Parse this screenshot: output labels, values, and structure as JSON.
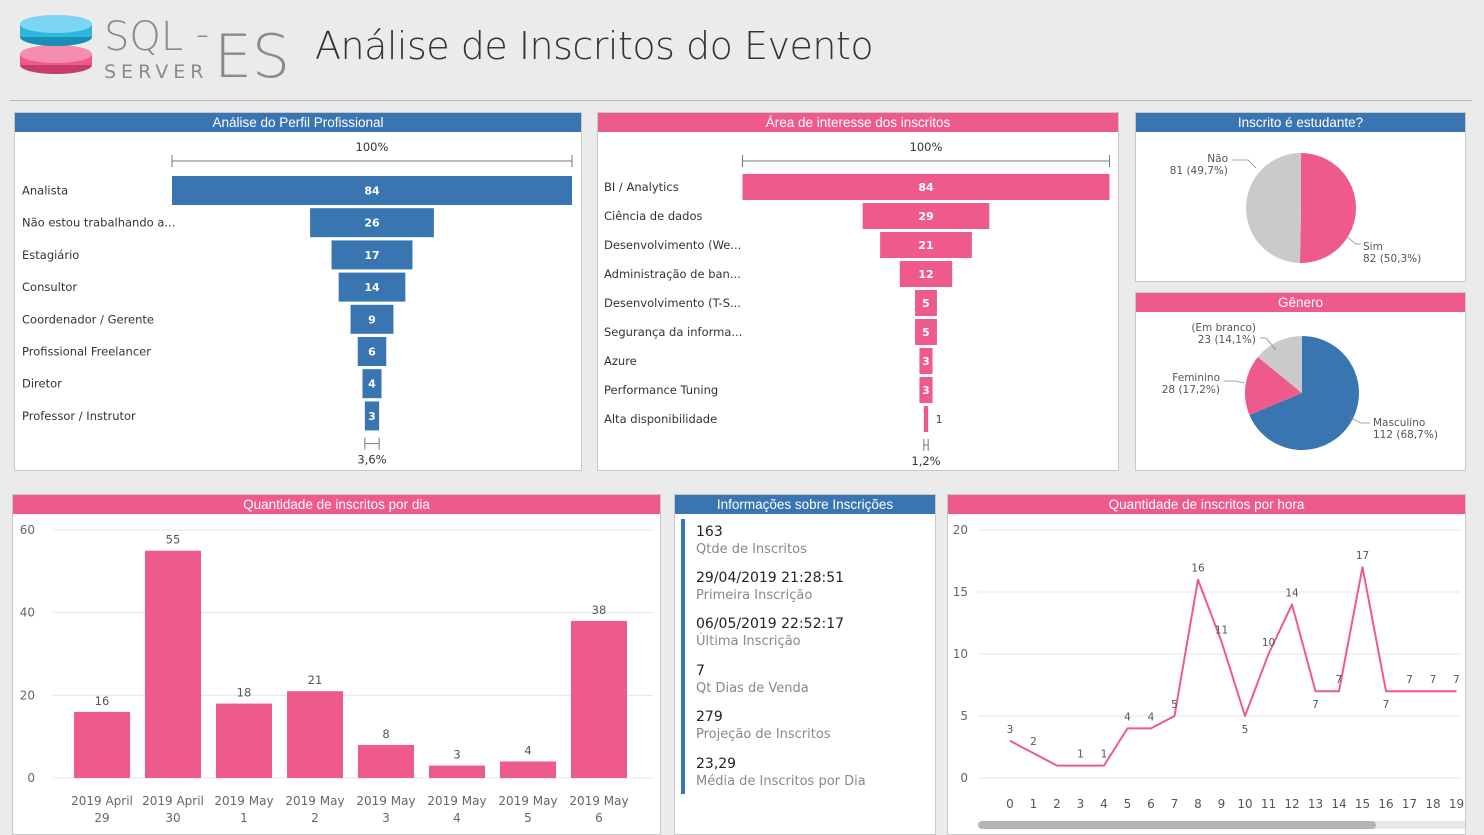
{
  "header": {
    "logo_text_top": "SQL",
    "logo_text_suffix": "ES",
    "logo_text_bottom": "SERVER",
    "title": "Análise de Inscritos do Evento"
  },
  "colors": {
    "blue": "#3875b1",
    "pink": "#ef5a8d",
    "gray": "#cacaca"
  },
  "perfil": {
    "title": "Análise do Perfil Profissional",
    "top_label": "100%",
    "bottom_label": "3,6%",
    "items": [
      {
        "label": "Analista",
        "value": 84
      },
      {
        "label": "Não estou trabalhando a...",
        "value": 26
      },
      {
        "label": "Estagiário",
        "value": 17
      },
      {
        "label": "Consultor",
        "value": 14
      },
      {
        "label": "Coordenador / Gerente",
        "value": 9
      },
      {
        "label": "Profissional Freelancer",
        "value": 6
      },
      {
        "label": "Diretor",
        "value": 4
      },
      {
        "label": "Professor / Instrutor",
        "value": 3
      }
    ]
  },
  "area": {
    "title": "Área de interesse dos inscritos",
    "top_label": "100%",
    "bottom_label": "1,2%",
    "items": [
      {
        "label": "BI / Analytics",
        "value": 84
      },
      {
        "label": "Ciência de dados",
        "value": 29
      },
      {
        "label": "Desenvolvimento (We...",
        "value": 21
      },
      {
        "label": "Administração de ban...",
        "value": 12
      },
      {
        "label": "Desenvolvimento (T-S...",
        "value": 5
      },
      {
        "label": "Segurança da informa...",
        "value": 5
      },
      {
        "label": "Azure",
        "value": 3
      },
      {
        "label": "Performance Tuning",
        "value": 3
      },
      {
        "label": "Alta disponibilidade",
        "value": 1
      }
    ]
  },
  "estudante": {
    "title": "Inscrito é estudante?",
    "slices": [
      {
        "name": "Sim",
        "value": 82,
        "label": "82 (50,3%)",
        "color": "#ef5a8d"
      },
      {
        "name": "Não",
        "value": 81,
        "label": "81 (49,7%)",
        "color": "#cacaca"
      }
    ]
  },
  "genero": {
    "title": "Gênero",
    "slices": [
      {
        "name": "Masculino",
        "value": 112,
        "label": "112 (68,7%)",
        "color": "#3875b1"
      },
      {
        "name": "Feminino",
        "value": 28,
        "label": "28 (17,2%)",
        "color": "#ef5a8d"
      },
      {
        "name": "(Em branco)",
        "value": 23,
        "label": "23 (14,1%)",
        "color": "#cacaca"
      }
    ]
  },
  "info": {
    "title": "Informações sobre Inscrições",
    "kpis": [
      {
        "value": "163",
        "label": "Qtde de Inscritos"
      },
      {
        "value": "29/04/2019 21:28:51",
        "label": "Primeira Inscrição"
      },
      {
        "value": "06/05/2019 22:52:17",
        "label": "Última Inscrição"
      },
      {
        "value": "7",
        "label": "Qt Dias de Venda"
      },
      {
        "value": "279",
        "label": "Projeção de Inscritos"
      },
      {
        "value": "23,29",
        "label": "Média de Inscritos por Dia"
      }
    ]
  },
  "chart_data": [
    {
      "type": "bar",
      "title": "Quantidade de inscritos por dia",
      "categories": [
        [
          "2019 April",
          "29"
        ],
        [
          "2019 April",
          "30"
        ],
        [
          "2019 May",
          "1"
        ],
        [
          "2019 May",
          "2"
        ],
        [
          "2019 May",
          "3"
        ],
        [
          "2019 May",
          "4"
        ],
        [
          "2019 May",
          "5"
        ],
        [
          "2019 May",
          "6"
        ]
      ],
      "values": [
        16,
        55,
        18,
        21,
        8,
        3,
        4,
        38
      ],
      "yticks": [
        0,
        20,
        40,
        60
      ],
      "ylim": [
        0,
        60
      ],
      "color": "#ef5a8d",
      "grid": true
    },
    {
      "type": "line",
      "title": "Quantidade de inscritos por hora",
      "x": [
        0,
        1,
        2,
        3,
        4,
        5,
        6,
        7,
        8,
        9,
        10,
        11,
        12,
        13,
        14,
        15,
        16,
        17,
        18,
        19
      ],
      "values": [
        3,
        2,
        1,
        1,
        1,
        4,
        4,
        5,
        16,
        11,
        5,
        10,
        14,
        7,
        7,
        17,
        7,
        7,
        7,
        7
      ],
      "point_x": [
        0,
        1,
        3,
        4,
        5,
        6,
        7,
        8,
        9,
        10,
        11,
        12,
        13,
        14,
        15,
        16,
        17,
        18,
        19
      ],
      "yticks": [
        0,
        5,
        10,
        15,
        20
      ],
      "ylim": [
        0,
        20
      ],
      "color": "#ef5a8d",
      "grid": true
    }
  ]
}
